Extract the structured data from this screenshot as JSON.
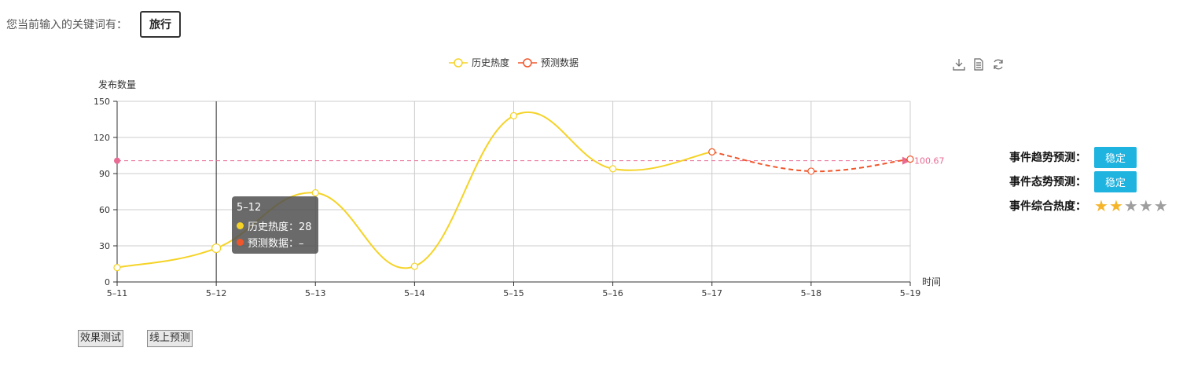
{
  "keyword": {
    "label": "您当前输入的关键词有：",
    "value": "旅行"
  },
  "toolbox": {
    "icons": [
      "download-icon",
      "data-view-icon",
      "refresh-icon"
    ]
  },
  "chart_data": {
    "type": "line",
    "categories": [
      "5–11",
      "5–12",
      "5–13",
      "5–14",
      "5–15",
      "5–16",
      "5–17",
      "5–18",
      "5–19"
    ],
    "series": [
      {
        "name": "历史热度",
        "color": "#f5d327",
        "smooth": true,
        "values": [
          12,
          28,
          74,
          13,
          138,
          94,
          108,
          null,
          null
        ]
      },
      {
        "name": "预测数据",
        "color": "#f0562b",
        "dashed": true,
        "values": [
          null,
          null,
          null,
          null,
          null,
          null,
          108,
          92,
          102
        ]
      }
    ],
    "ylabel": "发布数量",
    "xlabel": "时间",
    "ylim": [
      0,
      150
    ],
    "yticks": [
      0,
      30,
      60,
      90,
      120,
      150
    ],
    "grid": true,
    "legend": "top-center",
    "markline": {
      "value": 100.67,
      "label": "100.67",
      "color": "#e86c93"
    }
  },
  "tooltip": {
    "title": "5–12",
    "rows": [
      {
        "text": "历史热度：28",
        "color": "#f5d327"
      },
      {
        "text": "预测数据：–",
        "color": "#f0562b"
      }
    ]
  },
  "side": {
    "trend_label": "事件趋势预测：",
    "trend_value": "稳定",
    "state_label": "事件态势预测：",
    "state_value": "稳定",
    "heat_label": "事件综合热度：",
    "heat_stars": 2,
    "max_stars": 5,
    "star_on_color": "#f5b52a",
    "star_off_color": "#9e9e9e"
  },
  "buttons": {
    "test": "效果测试",
    "online": "线上预测"
  }
}
